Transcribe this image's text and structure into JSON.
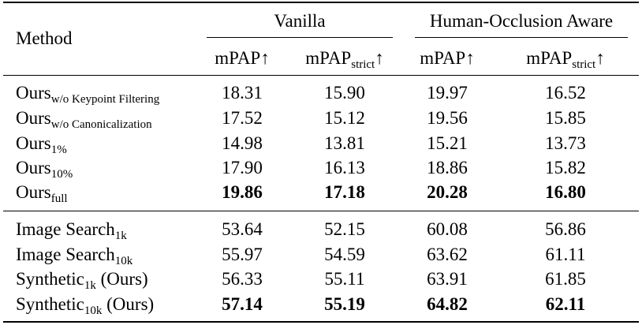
{
  "table": {
    "header": {
      "method": "Method",
      "group_vanilla": "Vanilla",
      "group_hoa": "Human-Occlusion Aware",
      "cols": [
        {
          "base": "mPAP",
          "sub": "",
          "arrow": "↑"
        },
        {
          "base": "mPAP",
          "sub": "strict",
          "arrow": "↑"
        },
        {
          "base": "mPAP",
          "sub": "",
          "arrow": "↑"
        },
        {
          "base": "mPAP",
          "sub": "strict",
          "arrow": "↑"
        }
      ]
    },
    "rows": [
      {
        "base": "Ours",
        "sub": "w/o Keypoint Filtering",
        "suffix": "",
        "v": [
          "18.31",
          "15.90",
          "19.97",
          "16.52"
        ],
        "bold": false
      },
      {
        "base": "Ours",
        "sub": "w/o Canonicalization",
        "suffix": "",
        "v": [
          "17.52",
          "15.12",
          "19.56",
          "15.85"
        ],
        "bold": false
      },
      {
        "base": "Ours",
        "sub": "1%",
        "suffix": "",
        "v": [
          "14.98",
          "13.81",
          "15.21",
          "13.73"
        ],
        "bold": false
      },
      {
        "base": "Ours",
        "sub": "10%",
        "suffix": "",
        "v": [
          "17.90",
          "16.13",
          "18.86",
          "15.82"
        ],
        "bold": false
      },
      {
        "base": "Ours",
        "sub": "full",
        "suffix": "",
        "v": [
          "19.86",
          "17.18",
          "20.28",
          "16.80"
        ],
        "bold": true
      },
      {
        "base": "Image Search",
        "sub": "1k",
        "suffix": "",
        "v": [
          "53.64",
          "52.15",
          "60.08",
          "56.86"
        ],
        "bold": false
      },
      {
        "base": "Image Search",
        "sub": "10k",
        "suffix": "",
        "v": [
          "55.97",
          "54.59",
          "63.62",
          "61.11"
        ],
        "bold": false
      },
      {
        "base": "Synthetic",
        "sub": "1k",
        "suffix": " (Ours)",
        "v": [
          "56.33",
          "55.11",
          "63.91",
          "61.85"
        ],
        "bold": false
      },
      {
        "base": "Synthetic",
        "sub": "10k",
        "suffix": " (Ours)",
        "v": [
          "57.14",
          "55.19",
          "64.82",
          "62.11"
        ],
        "bold": true
      }
    ]
  }
}
